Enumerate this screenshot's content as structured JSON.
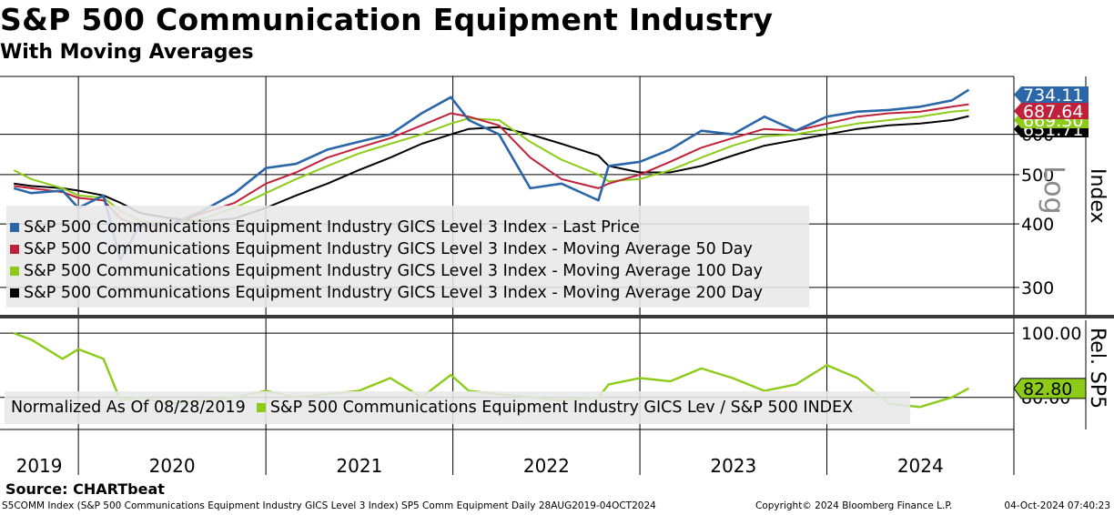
{
  "title": "S&P 500 Communication Equipment Industry",
  "subtitle": "With Moving Averages",
  "source": "Source: CHARTbeat",
  "footer": {
    "left": "S5COMM Index (S&P 500 Communications Equipment Industry GICS Level 3 Index) SP5 Comm Equipment  Daily 28AUG2019-04OCT2024",
    "copyright": "Copyright© 2024 Bloomberg Finance L.P.",
    "timestamp": "04-Oct-2024 07:40:23"
  },
  "colors": {
    "last_price": "#2a66a8",
    "ma50": "#c0213a",
    "ma100": "#8ccc18",
    "ma200": "#000000",
    "relative": "#8ccc18",
    "grid": "#000000"
  },
  "chart_data": [
    {
      "type": "line",
      "scale": "log",
      "ylabel": "Index",
      "scale_label": "Log",
      "ylim": [
        265,
        780
      ],
      "y_ticks": [
        300,
        400,
        500,
        600
      ],
      "x_ticks": [
        "2019",
        "2020",
        "2021",
        "2022",
        "2023",
        "2024"
      ],
      "x": [
        "2019-08-28",
        "2019-10",
        "2019-12",
        "2020-01",
        "2020-02-19",
        "2020-03-23",
        "2020-05",
        "2020-07",
        "2020-09",
        "2020-11",
        "2021-01",
        "2021-03",
        "2021-05",
        "2021-07",
        "2021-09",
        "2021-11",
        "2021-12-28",
        "2022-02",
        "2022-04",
        "2022-06",
        "2022-08",
        "2022-10-12",
        "2022-11",
        "2023-01",
        "2023-03",
        "2023-05",
        "2023-07",
        "2023-09",
        "2023-11",
        "2024-01",
        "2024-03",
        "2024-05",
        "2024-07",
        "2024-09",
        "2024-10-04"
      ],
      "series": [
        {
          "name": "S&P 500 Communications Equipment Industry GICS Level 3 Index - Last Price",
          "values": [
            470,
            460,
            465,
            430,
            455,
            340,
            400,
            400,
            425,
            460,
            515,
            525,
            560,
            580,
            600,
            660,
            710,
            640,
            600,
            470,
            480,
            445,
            520,
            530,
            560,
            610,
            600,
            650,
            610,
            650,
            665,
            670,
            680,
            700,
            734.11
          ]
        },
        {
          "name": "S&P 500 Communications Equipment Industry GICS Level 3 Index - Moving Average 50 Day",
          "values": [
            475,
            470,
            462,
            450,
            445,
            410,
            395,
            400,
            420,
            440,
            480,
            505,
            540,
            565,
            590,
            625,
            660,
            650,
            625,
            540,
            490,
            470,
            480,
            500,
            530,
            565,
            590,
            615,
            610,
            630,
            650,
            660,
            665,
            680,
            687.64
          ]
        },
        {
          "name": "S&P 500 Communications Equipment Industry GICS Level 3 Index - Moving Average 100 Day",
          "values": [
            510,
            490,
            470,
            455,
            450,
            425,
            405,
            400,
            410,
            430,
            460,
            490,
            520,
            550,
            575,
            600,
            630,
            645,
            640,
            580,
            535,
            500,
            485,
            490,
            510,
            540,
            570,
            595,
            600,
            615,
            630,
            640,
            650,
            665,
            669.3
          ]
        },
        {
          "name": "S&P 500 Communications Equipment Industry GICS Level 3 Index - Moving Average 200 Day",
          "values": [
            480,
            475,
            470,
            465,
            455,
            440,
            420,
            410,
            405,
            410,
            430,
            455,
            480,
            510,
            540,
            575,
            600,
            615,
            620,
            600,
            575,
            545,
            520,
            505,
            505,
            520,
            545,
            570,
            585,
            600,
            615,
            625,
            630,
            640,
            651.7
          ]
        }
      ],
      "last_labels": [
        "734.11",
        "687.64",
        "669.30",
        "651.71"
      ]
    },
    {
      "type": "line",
      "ylabel": "Rel. SP5",
      "ylim": [
        70,
        104
      ],
      "y_ticks": [
        80,
        100
      ],
      "y_tick_labels": [
        "80.00",
        "100.00"
      ],
      "x": [
        "2019-08-28",
        "2019-10",
        "2019-12",
        "2020-01",
        "2020-02-19",
        "2020-03-23",
        "2020-05",
        "2020-07",
        "2020-09",
        "2020-11",
        "2021-01",
        "2021-03",
        "2021-05",
        "2021-07",
        "2021-09",
        "2021-11",
        "2021-12-28",
        "2022-02",
        "2022-04",
        "2022-06",
        "2022-08",
        "2022-10-12",
        "2022-11",
        "2023-01",
        "2023-03",
        "2023-05",
        "2023-07",
        "2023-09",
        "2023-11",
        "2024-01",
        "2024-03",
        "2024-05",
        "2024-07",
        "2024-09",
        "2024-10-04"
      ],
      "series": [
        {
          "name": "S&P 500 Communications Equipment Industry GICS Lev / S&P 500 INDEX",
          "values": [
            100,
            98,
            92,
            95,
            92,
            79,
            80,
            78,
            79,
            80,
            82,
            80,
            81,
            82,
            86,
            80,
            87,
            82,
            81,
            80,
            79,
            80,
            84,
            86,
            85,
            89,
            86,
            82,
            84,
            90,
            86,
            78,
            77,
            80,
            82.8
          ]
        }
      ],
      "last_label": "82.80",
      "normalized_label": "Normalized As Of 08/28/2019"
    }
  ]
}
